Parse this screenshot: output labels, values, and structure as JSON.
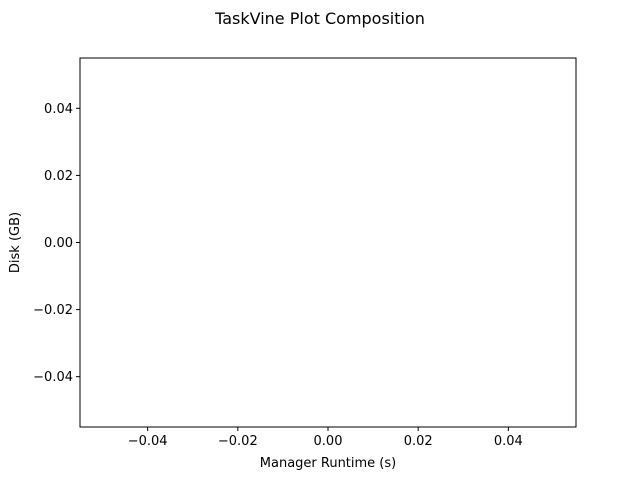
{
  "chart_data": {
    "type": "line",
    "title": "TaskVine Plot Composition",
    "xlabel": "Manager Runtime (s)",
    "ylabel": "Disk (GB)",
    "xlim": [
      -0.055,
      0.055
    ],
    "ylim": [
      -0.055,
      0.055
    ],
    "xticks": [
      -0.04,
      -0.02,
      0.0,
      0.02,
      0.04
    ],
    "xtick_labels": [
      "−0.04",
      "−0.02",
      "0.00",
      "0.02",
      "0.04"
    ],
    "yticks": [
      0.04,
      0.02,
      0.0,
      -0.02,
      -0.04
    ],
    "ytick_labels": [
      "0.04",
      "0.02",
      "0.00",
      "−0.02",
      "−0.04"
    ],
    "series": [],
    "grid": false,
    "legend": "none"
  }
}
